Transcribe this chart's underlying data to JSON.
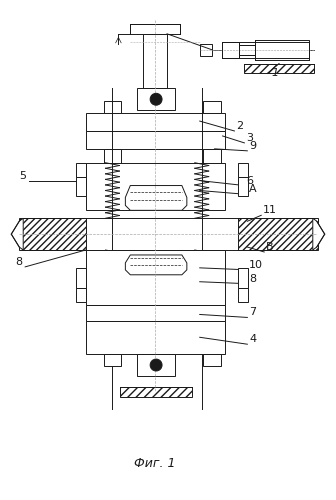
{
  "title": "Фиг. 1",
  "bg_color": "#ffffff",
  "line_color": "#1a1a1a",
  "fig_width": 3.36,
  "fig_height": 5.0,
  "dpi": 100
}
